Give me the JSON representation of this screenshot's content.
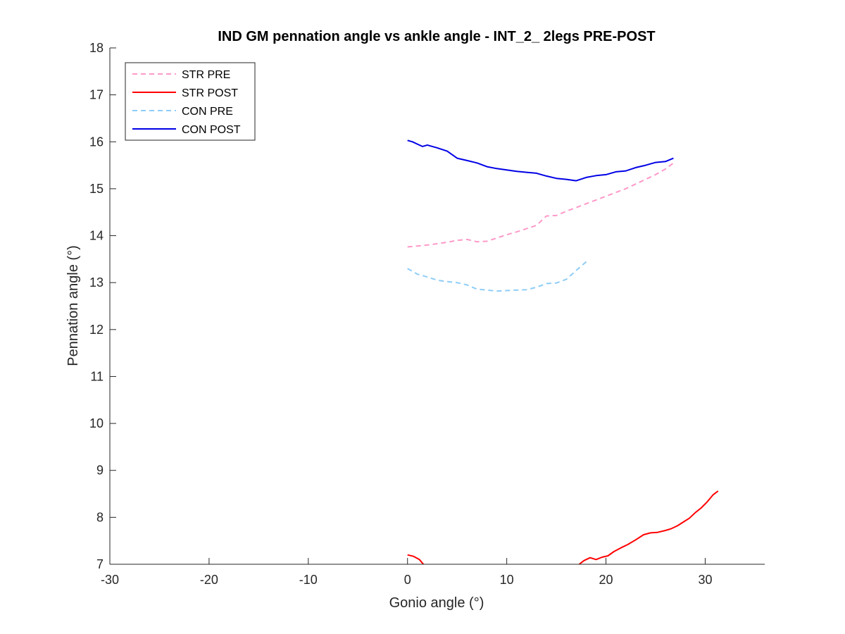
{
  "chart_data": {
    "type": "line",
    "title": "IND GM pennation angle vs ankle angle - INT_2_ 2legs PRE-POST",
    "xlabel": "Gonio angle (°)",
    "ylabel": "Pennation angle (°)",
    "xlim": [
      -30,
      36
    ],
    "ylim": [
      7,
      18
    ],
    "xticks": [
      -30,
      -20,
      -10,
      0,
      10,
      20,
      30
    ],
    "yticks": [
      7,
      8,
      9,
      10,
      11,
      12,
      13,
      14,
      15,
      16,
      17,
      18
    ],
    "grid": false,
    "legend_position": "top-left",
    "series": [
      {
        "name": "STR PRE",
        "color": "#ff99c8",
        "dash": "dashed",
        "x": [
          0,
          1,
          2,
          3,
          4,
          5,
          6,
          7,
          8,
          9,
          10,
          11,
          12,
          13,
          14,
          15,
          16,
          17,
          18,
          19,
          20,
          21,
          22,
          23,
          24,
          25,
          26,
          26.8
        ],
        "y": [
          13.76,
          13.78,
          13.8,
          13.83,
          13.86,
          13.9,
          13.92,
          13.87,
          13.88,
          13.95,
          14.02,
          14.08,
          14.15,
          14.22,
          14.42,
          14.43,
          14.52,
          14.6,
          14.68,
          14.76,
          14.84,
          14.92,
          15.0,
          15.1,
          15.2,
          15.3,
          15.42,
          15.55
        ]
      },
      {
        "name": "STR POST",
        "color": "#ff0000",
        "dash": "solid",
        "segments": [
          {
            "x": [
              0,
              0.6,
              1.2,
              1.6
            ],
            "y": [
              7.2,
              7.17,
              7.1,
              7.0
            ]
          },
          {
            "x": [
              17.3,
              17.8,
              18.4,
              19.0,
              19.6,
              20.2,
              20.8,
              21.5,
              22.2,
              23.0,
              23.8,
              24.5,
              25.2,
              26.0,
              26.6,
              27.2,
              27.8,
              28.4,
              29.0,
              29.6,
              30.2,
              30.8,
              31.3
            ],
            "y": [
              7.0,
              7.08,
              7.14,
              7.1,
              7.15,
              7.18,
              7.27,
              7.35,
              7.42,
              7.52,
              7.63,
              7.67,
              7.68,
              7.72,
              7.76,
              7.82,
              7.9,
              7.98,
              8.1,
              8.2,
              8.33,
              8.48,
              8.56
            ]
          }
        ]
      },
      {
        "name": "CON PRE",
        "color": "#8ecdf7",
        "dash": "dashed",
        "x": [
          0,
          1,
          2,
          3,
          4,
          5,
          6,
          7,
          8,
          9,
          10,
          11,
          12,
          13,
          14,
          15,
          16,
          17,
          18.2
        ],
        "y": [
          13.3,
          13.18,
          13.12,
          13.05,
          13.02,
          13.0,
          12.95,
          12.86,
          12.84,
          12.82,
          12.83,
          12.84,
          12.85,
          12.9,
          12.98,
          12.99,
          13.07,
          13.26,
          13.48
        ]
      },
      {
        "name": "CON POST",
        "color": "#0000e6",
        "dash": "solid",
        "x": [
          0,
          0.5,
          1,
          1.5,
          2,
          3,
          4,
          5,
          6,
          7,
          8,
          9,
          10,
          11,
          12,
          13,
          14,
          15,
          16,
          17,
          18,
          19,
          20,
          21,
          22,
          23,
          24,
          25,
          26,
          26.8
        ],
        "y": [
          16.03,
          16.0,
          15.95,
          15.9,
          15.93,
          15.87,
          15.8,
          15.65,
          15.6,
          15.55,
          15.47,
          15.43,
          15.4,
          15.37,
          15.35,
          15.33,
          15.27,
          15.22,
          15.2,
          15.17,
          15.24,
          15.28,
          15.3,
          15.36,
          15.38,
          15.45,
          15.5,
          15.56,
          15.58,
          15.65
        ]
      }
    ]
  }
}
